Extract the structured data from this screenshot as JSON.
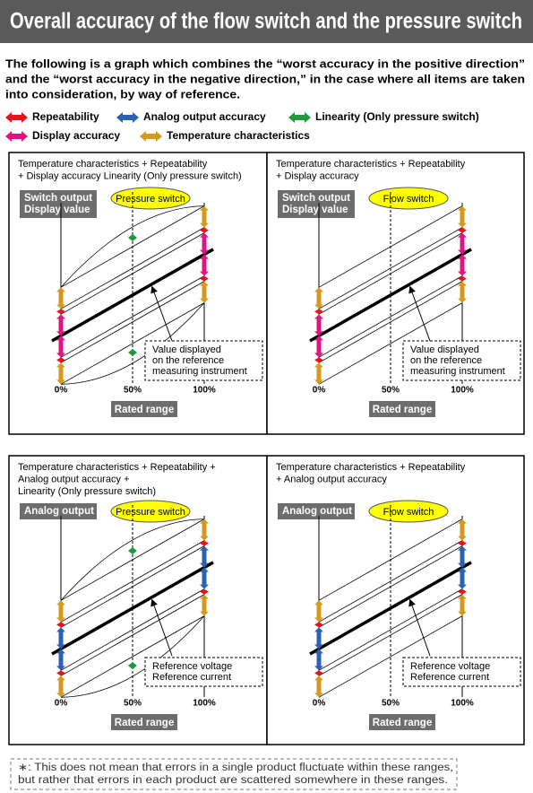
{
  "header": {
    "title": "Overall accuracy of the flow switch and the pressure switch"
  },
  "intro": [
    "The following is a graph which combines the “worst accuracy in the positive direction”",
    "and the “worst accuracy in the negative direction,” in the case where all items are taken",
    "into consideration, by way of reference."
  ],
  "legend": [
    {
      "label": "Repeatability",
      "color": "#e8141c"
    },
    {
      "label": "Analog output accuracy",
      "color": "#2a62b0"
    },
    {
      "label": "Linearity (Only pressure switch)",
      "color": "#1e9a3c"
    },
    {
      "label": "Display accuracy",
      "color": "#e0157f"
    },
    {
      "label": "Temperature characteristics",
      "color": "#d49a1e"
    }
  ],
  "panels": [
    {
      "caption": [
        "Temperature characteristics + Repeatability",
        "+ Display accuracy Linearity (Only pressure switch)"
      ],
      "output_label": [
        "Switch output",
        "Display value"
      ],
      "switch": "Pressure switch",
      "note": [
        "Value displayed",
        "on the reference",
        "measuring instrument"
      ],
      "x_ticks": [
        "0%",
        "50%",
        "100%"
      ],
      "x_label": "Rated range"
    },
    {
      "caption": [
        "Temperature characteristics + Repeatability",
        "+ Display accuracy"
      ],
      "output_label": [
        "Switch output",
        "Display value"
      ],
      "switch": "Flow switch",
      "note": [
        "Value displayed",
        "on the reference",
        "measuring instrument"
      ],
      "x_ticks": [
        "0%",
        "50%",
        "100%"
      ],
      "x_label": "Rated range"
    },
    {
      "caption": [
        "Temperature characteristics + Repeatability +",
        "Analog output accuracy +",
        "Linearity (Only pressure switch)"
      ],
      "output_label": [
        "Analog output"
      ],
      "switch": "Pressure switch",
      "note": [
        "Reference voltage",
        "Reference current"
      ],
      "x_ticks": [
        "0%",
        "50%",
        "100%"
      ],
      "x_label": "Rated range"
    },
    {
      "caption": [
        "Temperature characteristics + Repeatability",
        "+ Analog output accuracy"
      ],
      "output_label": [
        "Analog output"
      ],
      "switch": "Flow switch",
      "note": [
        "Reference voltage",
        "Reference current"
      ],
      "x_ticks": [
        "0%",
        "50%",
        "100%"
      ],
      "x_label": "Rated range"
    }
  ],
  "footnote": [
    "∗: This does not mean that errors in a single product fluctuate within these ranges,",
    "but rather that errors in each product are scattered somewhere in these ranges."
  ]
}
